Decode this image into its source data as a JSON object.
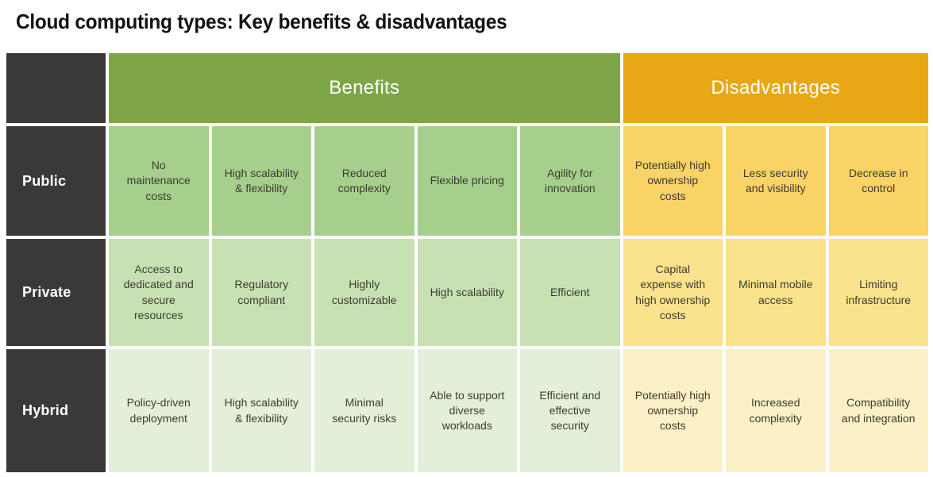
{
  "title": "Cloud computing types: Key benefits & disadvantages",
  "chart_data": {
    "type": "table",
    "title": "Cloud computing types: Key benefits & disadvantages",
    "column_groups": [
      {
        "label": "Benefits",
        "columns": 5
      },
      {
        "label": "Disadvantages",
        "columns": 3
      }
    ],
    "row_labels": [
      "Public",
      "Private",
      "Hybrid"
    ],
    "rows": [
      {
        "label": "Public",
        "benefits": [
          "No maintenance costs",
          "High scalability & flexibility",
          "Reduced complexity",
          "Flexible pricing",
          "Agility for innovation"
        ],
        "disadvantages": [
          "Potentially high ownership costs",
          "Less security and visibility",
          "Decrease in control"
        ]
      },
      {
        "label": "Private",
        "benefits": [
          "Access to dedicated and secure resources",
          "Regulatory compliant",
          "Highly customizable",
          "High scalability",
          "Efficient"
        ],
        "disadvantages": [
          "Capital expense with high ownership costs",
          "Minimal mobile access",
          "Limiting infrastructure"
        ]
      },
      {
        "label": "Hybrid",
        "benefits": [
          "Policy-driven deployment",
          "High scalability & flexibility",
          "Minimal security risks",
          "Able to support diverse workloads",
          "Efficient and effective security"
        ],
        "disadvantages": [
          "Potentially high ownership costs",
          "Increased complexity",
          "Compatibility and integration"
        ]
      }
    ],
    "grid": false,
    "legend_position": "none"
  },
  "colors": {
    "dark_cell": "#3B3838",
    "benefits_header": "#7EA648",
    "disadvantages_header": "#E8A815",
    "public_benefit": "#A6CF8D",
    "private_benefit": "#C7E1B3",
    "hybrid_benefit": "#E3EFD9",
    "public_disadvantage": "#F9D366",
    "private_disadvantage": "#FBE28D",
    "hybrid_disadvantage": "#FCF0C6",
    "header_text": "#FFFFFF",
    "cell_text": "#3C3C31",
    "title_text": "#121212",
    "background": "#FFFFFF"
  }
}
